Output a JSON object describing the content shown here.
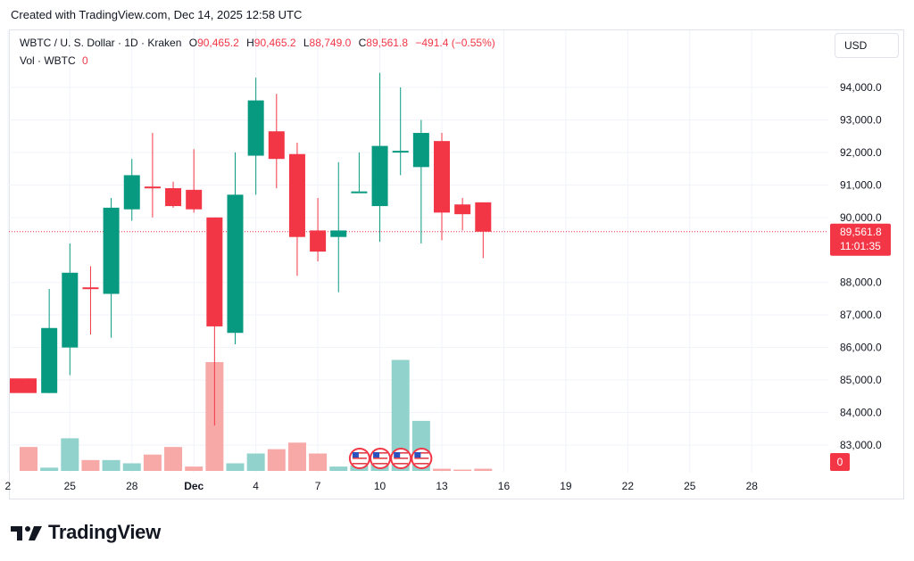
{
  "caption": "Created with TradingView.com, Dec 14, 2025 12:58 UTC",
  "legend": {
    "symbol": "WBTC / U. S. Dollar · 1D · Kraken",
    "o_label": "O",
    "o_val": "90,465.2",
    "h_label": "H",
    "h_val": "90,465.2",
    "l_label": "L",
    "l_val": "88,749.0",
    "c_label": "C",
    "c_val": "89,561.8",
    "change": "−491.4 (−0.55%)",
    "vol_label": "Vol · WBTC",
    "vol_val": "0"
  },
  "currency_button": "USD",
  "price_tag": {
    "price": "89,561.8",
    "countdown": "11:01:35"
  },
  "volume_tag": "0",
  "footer": {
    "brand": "TradingView"
  },
  "colors": {
    "up": "#089981",
    "down": "#f23645",
    "up_vol": "#92d2cc",
    "down_vol": "#f7a9a7",
    "grid": "#f0f3fa"
  },
  "chart_data": {
    "type": "candlestick",
    "title": "WBTC / U. S. Dollar · 1D · Kraken",
    "ylim": [
      82300,
      95500
    ],
    "y_ticks": [
      "94,000.0",
      "93,000.0",
      "92,000.0",
      "91,000.0",
      "90,000.0",
      "88,000.0",
      "87,000.0",
      "86,000.0",
      "85,000.0",
      "84,000.0",
      "83,000.0"
    ],
    "y_tick_values": [
      94000,
      93000,
      92000,
      91000,
      90000,
      88000,
      87000,
      86000,
      85000,
      84000,
      83000
    ],
    "x_tick_labels": [
      "2",
      "25",
      "28",
      "Dec",
      "4",
      "7",
      "10",
      "13",
      "16",
      "19",
      "22",
      "25",
      "28"
    ],
    "x_tick_index": [
      -1,
      2,
      5,
      8,
      11,
      14,
      17,
      20,
      23,
      26,
      29,
      32,
      35
    ],
    "last_price": 89561.8,
    "candles": [
      {
        "date": "Nov 22",
        "o": 85050,
        "h": 85050,
        "l": 84600,
        "c": 84600
      },
      {
        "date": "Nov 23",
        "o": 84600,
        "h": 87800,
        "l": 84600,
        "c": 86600
      },
      {
        "date": "Nov 24",
        "o": 86000,
        "h": 89200,
        "l": 85150,
        "c": 88300
      },
      {
        "date": "Nov 25",
        "o": 87850,
        "h": 88500,
        "l": 86400,
        "c": 87800
      },
      {
        "date": "Nov 26",
        "o": 87650,
        "h": 90600,
        "l": 86300,
        "c": 90300
      },
      {
        "date": "Nov 27",
        "o": 90250,
        "h": 91800,
        "l": 89900,
        "c": 91300
      },
      {
        "date": "Nov 28",
        "o": 90950,
        "h": 92600,
        "l": 90000,
        "c": 90900
      },
      {
        "date": "Nov 29",
        "o": 90900,
        "h": 91100,
        "l": 90300,
        "c": 90350
      },
      {
        "date": "Nov 30",
        "o": 90850,
        "h": 92100,
        "l": 90150,
        "c": 90250
      },
      {
        "date": "Dec 1",
        "o": 90000,
        "h": 90000,
        "l": 83600,
        "c": 86650
      },
      {
        "date": "Dec 2",
        "o": 86450,
        "h": 92000,
        "l": 86100,
        "c": 90700
      },
      {
        "date": "Dec 3",
        "o": 91900,
        "h": 94300,
        "l": 90700,
        "c": 93600
      },
      {
        "date": "Dec 4",
        "o": 92650,
        "h": 93800,
        "l": 90900,
        "c": 91800
      },
      {
        "date": "Dec 5",
        "o": 91950,
        "h": 92300,
        "l": 88200,
        "c": 89400
      },
      {
        "date": "Dec 6",
        "o": 89600,
        "h": 90600,
        "l": 88650,
        "c": 88950
      },
      {
        "date": "Dec 7",
        "o": 89400,
        "h": 91700,
        "l": 87700,
        "c": 89600
      },
      {
        "date": "Dec 8",
        "o": 90750,
        "h": 92000,
        "l": 90750,
        "c": 90800
      },
      {
        "date": "Dec 9",
        "o": 90350,
        "h": 94450,
        "l": 89250,
        "c": 92200
      },
      {
        "date": "Dec 10",
        "o": 92050,
        "h": 94000,
        "l": 91300,
        "c": 92050
      },
      {
        "date": "Dec 11",
        "o": 91550,
        "h": 93000,
        "l": 89200,
        "c": 92600
      },
      {
        "date": "Dec 12",
        "o": 92350,
        "h": 92600,
        "l": 89300,
        "c": 90150
      },
      {
        "date": "Dec 13",
        "o": 90400,
        "h": 90600,
        "l": 89600,
        "c": 90100
      },
      {
        "date": "Dec 14",
        "o": 90465.2,
        "h": 90465.2,
        "l": 88749.0,
        "c": 89561.8
      }
    ],
    "volumes": [
      0.22,
      0.03,
      0.3,
      0.1,
      0.1,
      0.07,
      0.15,
      0.22,
      0.04,
      1.0,
      0.07,
      0.16,
      0.2,
      0.26,
      0.16,
      0.04,
      0.05,
      0.07,
      1.02,
      0.46,
      0.02,
      0.01,
      0.02
    ],
    "event_markers": [
      16,
      17,
      18,
      19
    ]
  }
}
